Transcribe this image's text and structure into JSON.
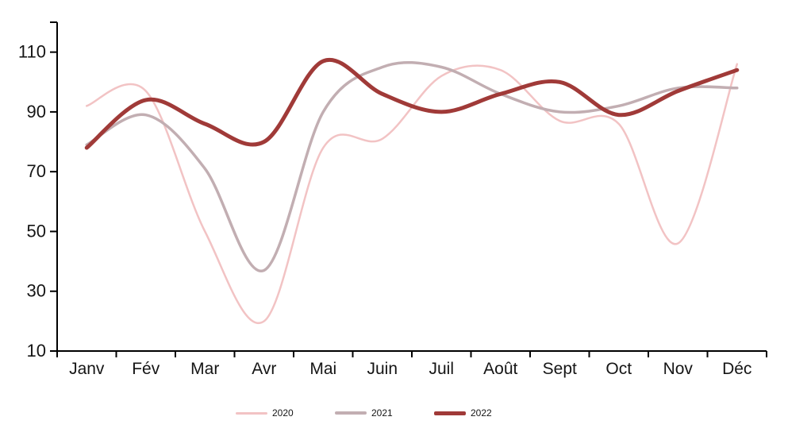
{
  "chart_data": {
    "type": "line",
    "smooth": true,
    "grid": false,
    "title": "",
    "xlabel": "",
    "ylabel": "",
    "categories": [
      "Janv",
      "Fév",
      "Mar",
      "Avr",
      "Mai",
      "Juin",
      "Juil",
      "Août",
      "Sept",
      "Oct",
      "Nov",
      "Déc"
    ],
    "y_ticks": [
      10,
      30,
      50,
      70,
      90,
      110
    ],
    "ylim": [
      10,
      120
    ],
    "axis_color": "#000000",
    "label_color": "#151515",
    "series": [
      {
        "name": "2020",
        "color": "#f2c3c4",
        "stroke_width": 2.5,
        "values": [
          92,
          97,
          50,
          20,
          78,
          81,
          102,
          104,
          87,
          86,
          46,
          106
        ]
      },
      {
        "name": "2021",
        "color": "#c2aeb2",
        "stroke_width": 3.5,
        "values": [
          79,
          89,
          71,
          37,
          90,
          105,
          105,
          96,
          90,
          92,
          98,
          98
        ]
      },
      {
        "name": "2022",
        "color": "#a03a38",
        "stroke_width": 5,
        "values": [
          78,
          94,
          86,
          80,
          107,
          96,
          90,
          96,
          100,
          89,
          97,
          104
        ]
      }
    ],
    "legend": {
      "position": "bottom",
      "entries": [
        "2020",
        "2021",
        "2022"
      ]
    }
  }
}
